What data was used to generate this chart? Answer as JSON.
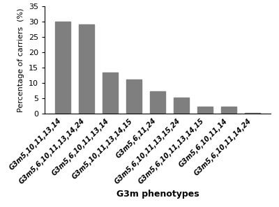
{
  "categories": [
    "G3m5,10,11,13,14",
    "G3m5,6,10,11,13,14,24",
    "G3m5,6,10,11,13,14",
    "G3m5,10,11,13,14,15",
    "G3m5,6,11,24",
    "G3m5,6,10,11,13,15,24",
    "G3m5,6,10,11,13,14,15",
    "G3m5,6,10,11,14",
    "G3m5,6,10,11,14,24"
  ],
  "values": [
    30.0,
    29.0,
    13.4,
    11.2,
    7.3,
    5.4,
    2.4,
    2.4,
    0.4
  ],
  "bar_color": "#7f7f7f",
  "ylabel": "Percentage of carriers  (%)",
  "xlabel": "G3m phenotypes",
  "ylim": [
    0,
    35
  ],
  "yticks": [
    0,
    5,
    10,
    15,
    20,
    25,
    30,
    35
  ],
  "bar_width": 0.65,
  "xtick_fontsize": 7,
  "ytick_fontsize": 8,
  "ylabel_fontsize": 8,
  "xlabel_fontsize": 9
}
